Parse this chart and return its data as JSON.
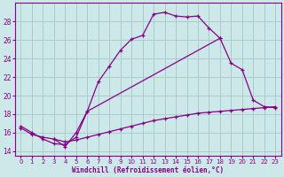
{
  "xlabel": "Windchill (Refroidissement éolien,°C)",
  "bg_color": "#cce8e8",
  "grid_color": "#aacccc",
  "line_color": "#880088",
  "xlim": [
    -0.5,
    23.5
  ],
  "ylim": [
    13.5,
    30
  ],
  "xticks": [
    0,
    1,
    2,
    3,
    4,
    5,
    6,
    7,
    8,
    9,
    10,
    11,
    12,
    13,
    14,
    15,
    16,
    17,
    18,
    19,
    20,
    21,
    22,
    23
  ],
  "yticks": [
    14,
    16,
    18,
    20,
    22,
    24,
    26,
    28
  ],
  "line1_x": [
    0,
    1,
    2,
    3,
    4,
    5,
    6,
    7,
    8,
    9,
    10,
    11,
    12,
    13,
    14,
    15,
    16,
    17,
    18
  ],
  "line1_y": [
    16.7,
    16.0,
    15.3,
    14.8,
    14.7,
    15.5,
    18.3,
    21.5,
    23.2,
    24.9,
    26.1,
    26.5,
    28.8,
    29.0,
    28.6,
    28.5,
    28.6,
    27.3,
    26.2
  ],
  "line2_x": [
    3,
    4,
    5,
    6,
    18,
    19,
    20,
    21,
    22,
    23
  ],
  "line2_y": [
    15.3,
    14.5,
    16.0,
    18.3,
    26.2,
    23.5,
    22.8,
    19.5,
    18.8,
    18.7
  ],
  "line3_x": [
    0,
    1,
    2,
    3,
    4,
    5,
    6,
    7,
    8,
    9,
    10,
    11,
    12,
    13,
    14,
    15,
    16,
    17,
    18,
    19,
    20,
    21,
    22,
    23
  ],
  "line3_y": [
    16.5,
    15.8,
    15.5,
    15.3,
    15.0,
    15.2,
    15.5,
    15.8,
    16.1,
    16.4,
    16.7,
    17.0,
    17.3,
    17.5,
    17.7,
    17.9,
    18.1,
    18.2,
    18.3,
    18.4,
    18.5,
    18.6,
    18.7,
    18.8
  ]
}
